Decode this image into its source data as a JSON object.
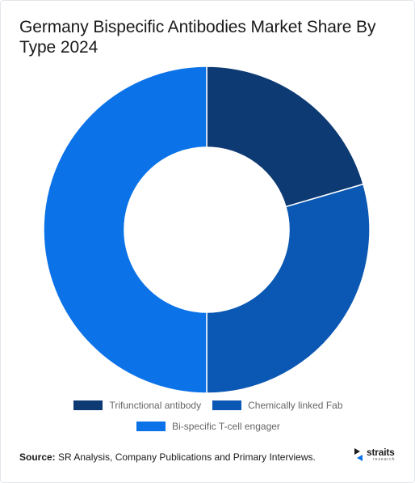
{
  "header": {
    "title": "Germany Bispecific Antibodies Market Share By Type 2024"
  },
  "chart_data": {
    "type": "pie",
    "variant": "donut",
    "title": "Germany Bispecific Antibodies Market Share By Type 2024",
    "categories": [
      "Trifunctional antibody",
      "Chemically linked Fab",
      "Bi-specific T-cell engager"
    ],
    "values": [
      20.5,
      29.5,
      50.0
    ],
    "colors": [
      "#0e3a73",
      "#0a58b3",
      "#0b72e8"
    ],
    "legend_position": "bottom"
  },
  "legend": {
    "items": [
      {
        "label": "Trifunctional antibody",
        "color": "#0e3a73"
      },
      {
        "label": "Chemically linked Fab",
        "color": "#0a58b3"
      },
      {
        "label": "Bi-specific T-cell engager",
        "color": "#0b72e8"
      }
    ]
  },
  "footer": {
    "source_label": "Source:",
    "source_text": " SR Analysis, Company Publications and Primary Interviews.",
    "logo_name": "straits",
    "logo_sub": "research",
    "logo_icon": "straits-logo-icon"
  }
}
